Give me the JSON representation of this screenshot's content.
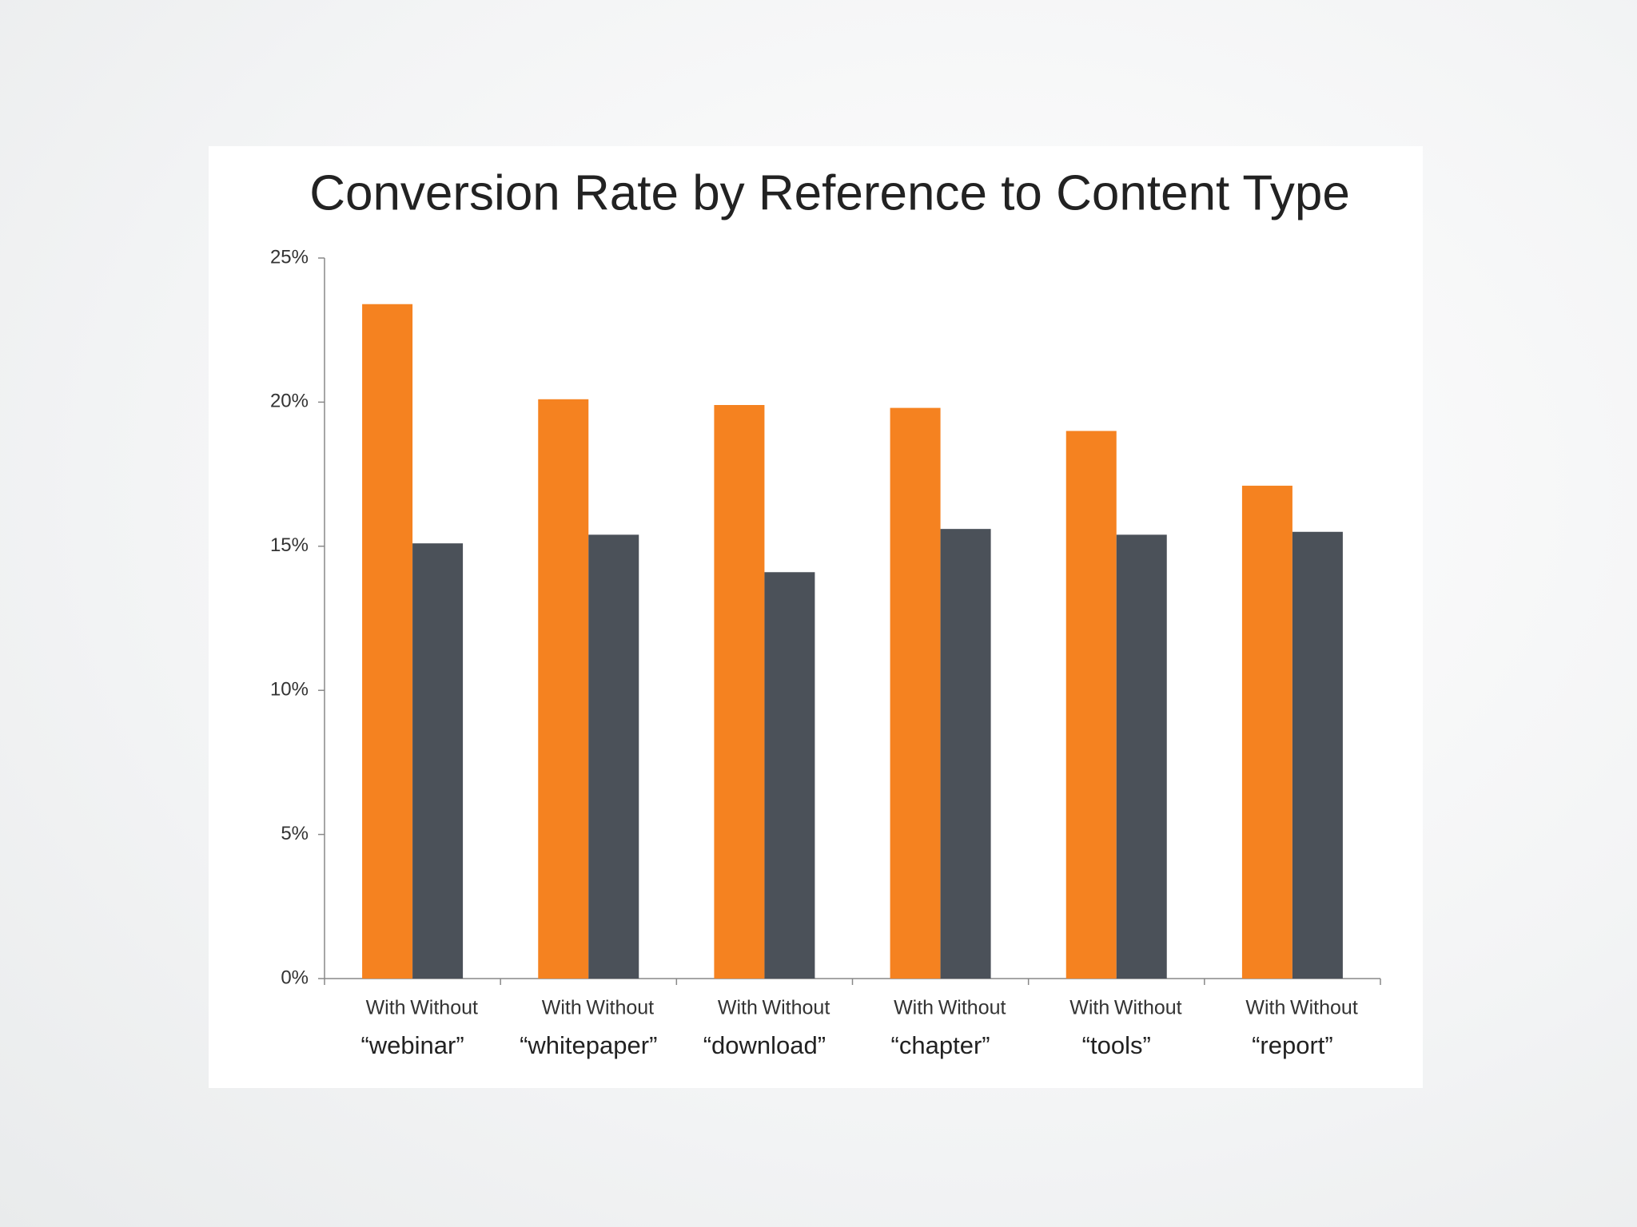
{
  "chart_data": {
    "type": "bar",
    "title": "Conversion Rate by Reference to Content Type",
    "categories": [
      "“webinar”",
      "“whitepaper”",
      "“download”",
      "“chapter”",
      "“tools”",
      "“report”"
    ],
    "series": [
      {
        "name": "With",
        "color": "#f58220",
        "values": [
          23.4,
          20.1,
          19.9,
          19.8,
          19.0,
          17.1
        ]
      },
      {
        "name": "Without",
        "color": "#4b5159",
        "values": [
          15.1,
          15.4,
          14.1,
          15.6,
          15.4,
          15.5
        ]
      }
    ],
    "ylim": [
      0,
      25
    ],
    "yticks": [
      {
        "value": 0,
        "label": "0%"
      },
      {
        "value": 5,
        "label": "5%"
      },
      {
        "value": 10,
        "label": "10%"
      },
      {
        "value": 15,
        "label": "15%"
      },
      {
        "value": 20,
        "label": "20%"
      },
      {
        "value": 25,
        "label": "25%"
      }
    ],
    "grid": false
  }
}
